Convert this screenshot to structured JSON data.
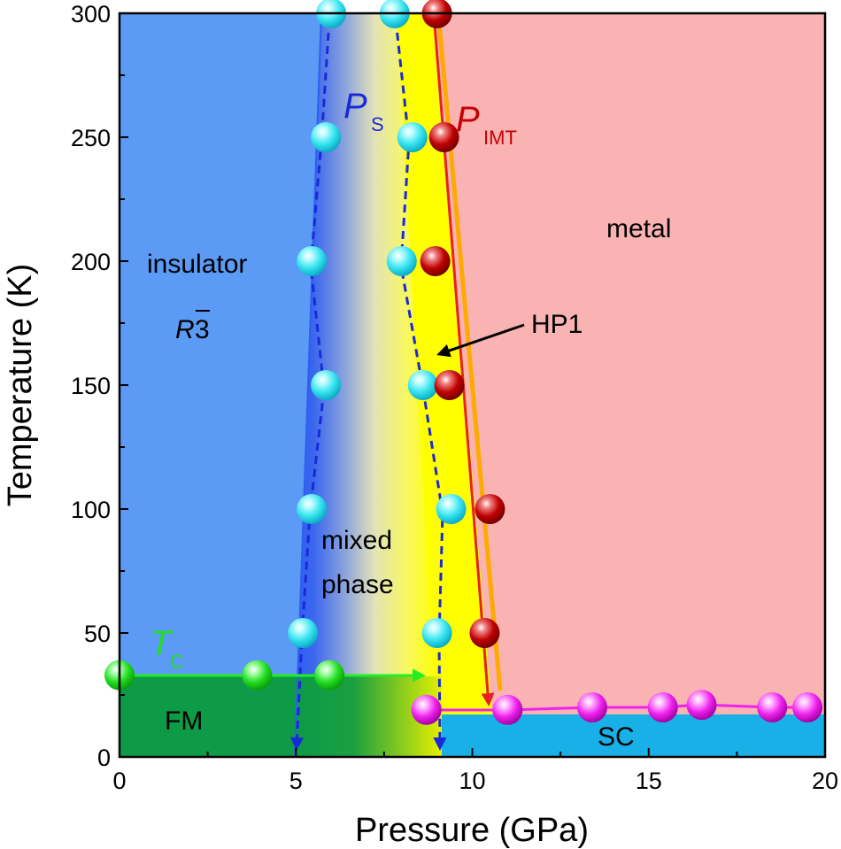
{
  "chart_data": {
    "type": "scatter",
    "xlabel": "Pressure (GPa)",
    "ylabel": "Temperature (K)",
    "xlim": [
      0,
      20
    ],
    "ylim": [
      0,
      300
    ],
    "x_ticks": [
      "0",
      "5",
      "10",
      "15",
      "20"
    ],
    "y_ticks": [
      "0",
      "50",
      "100",
      "150",
      "200",
      "250",
      "300"
    ],
    "grid": false,
    "regions": {
      "insulator": "insulator",
      "space_group_main": "R",
      "space_group_bar": "3",
      "mixed_line1": "mixed",
      "mixed_line2": "phase",
      "metal": "metal",
      "fm": "FM",
      "sc": "SC"
    },
    "labels": {
      "ps_main": "P",
      "ps_sub": "S",
      "pimt_main": "P",
      "pimt_sub": "IMT",
      "tc_main": "T",
      "tc_sub": "C",
      "hp1": "HP1"
    },
    "series": [
      {
        "key": "ps_left",
        "color": "#35e3ef",
        "points": [
          [
            6.0,
            300
          ],
          [
            5.85,
            250
          ],
          [
            5.45,
            200
          ],
          [
            5.85,
            150
          ],
          [
            5.45,
            100
          ],
          [
            5.2,
            50
          ]
        ]
      },
      {
        "key": "ps_right",
        "color": "#35e3ef",
        "points": [
          [
            7.8,
            300
          ],
          [
            8.3,
            250
          ],
          [
            8.0,
            200
          ],
          [
            8.6,
            150
          ],
          [
            9.4,
            100
          ],
          [
            9.0,
            50
          ]
        ]
      },
      {
        "key": "pimt",
        "color": "#c00000",
        "points": [
          [
            9.0,
            300
          ],
          [
            9.2,
            250
          ],
          [
            8.95,
            200
          ],
          [
            9.35,
            150
          ],
          [
            10.5,
            100
          ],
          [
            10.35,
            50
          ]
        ]
      },
      {
        "key": "tc",
        "color": "#22dd22",
        "points": [
          [
            0.0,
            33
          ],
          [
            3.9,
            33
          ],
          [
            5.95,
            33
          ]
        ]
      },
      {
        "key": "sc",
        "color": "#ee22ee",
        "points": [
          [
            8.7,
            19
          ],
          [
            11.0,
            19
          ],
          [
            13.4,
            20
          ],
          [
            15.4,
            20
          ],
          [
            16.5,
            21
          ],
          [
            18.5,
            20
          ],
          [
            19.5,
            20
          ]
        ]
      }
    ],
    "colors": {
      "insulator": "#5b9af5",
      "boundary": "#2f5ff0",
      "mixed": "#ffff00",
      "metal": "#f9b3b3",
      "fm": "#0e9b47",
      "sc_region": "#18b0e6",
      "ps_line": "#1a2ad8",
      "pimt_line": "#e82020",
      "pimt_edge": "#ffaa00",
      "tc_line": "#22ee22",
      "sc_line": "#ee22ee",
      "ps_text": "#1a2ad8",
      "pimt_text": "#c80000",
      "tc_text": "#22dd22"
    }
  }
}
